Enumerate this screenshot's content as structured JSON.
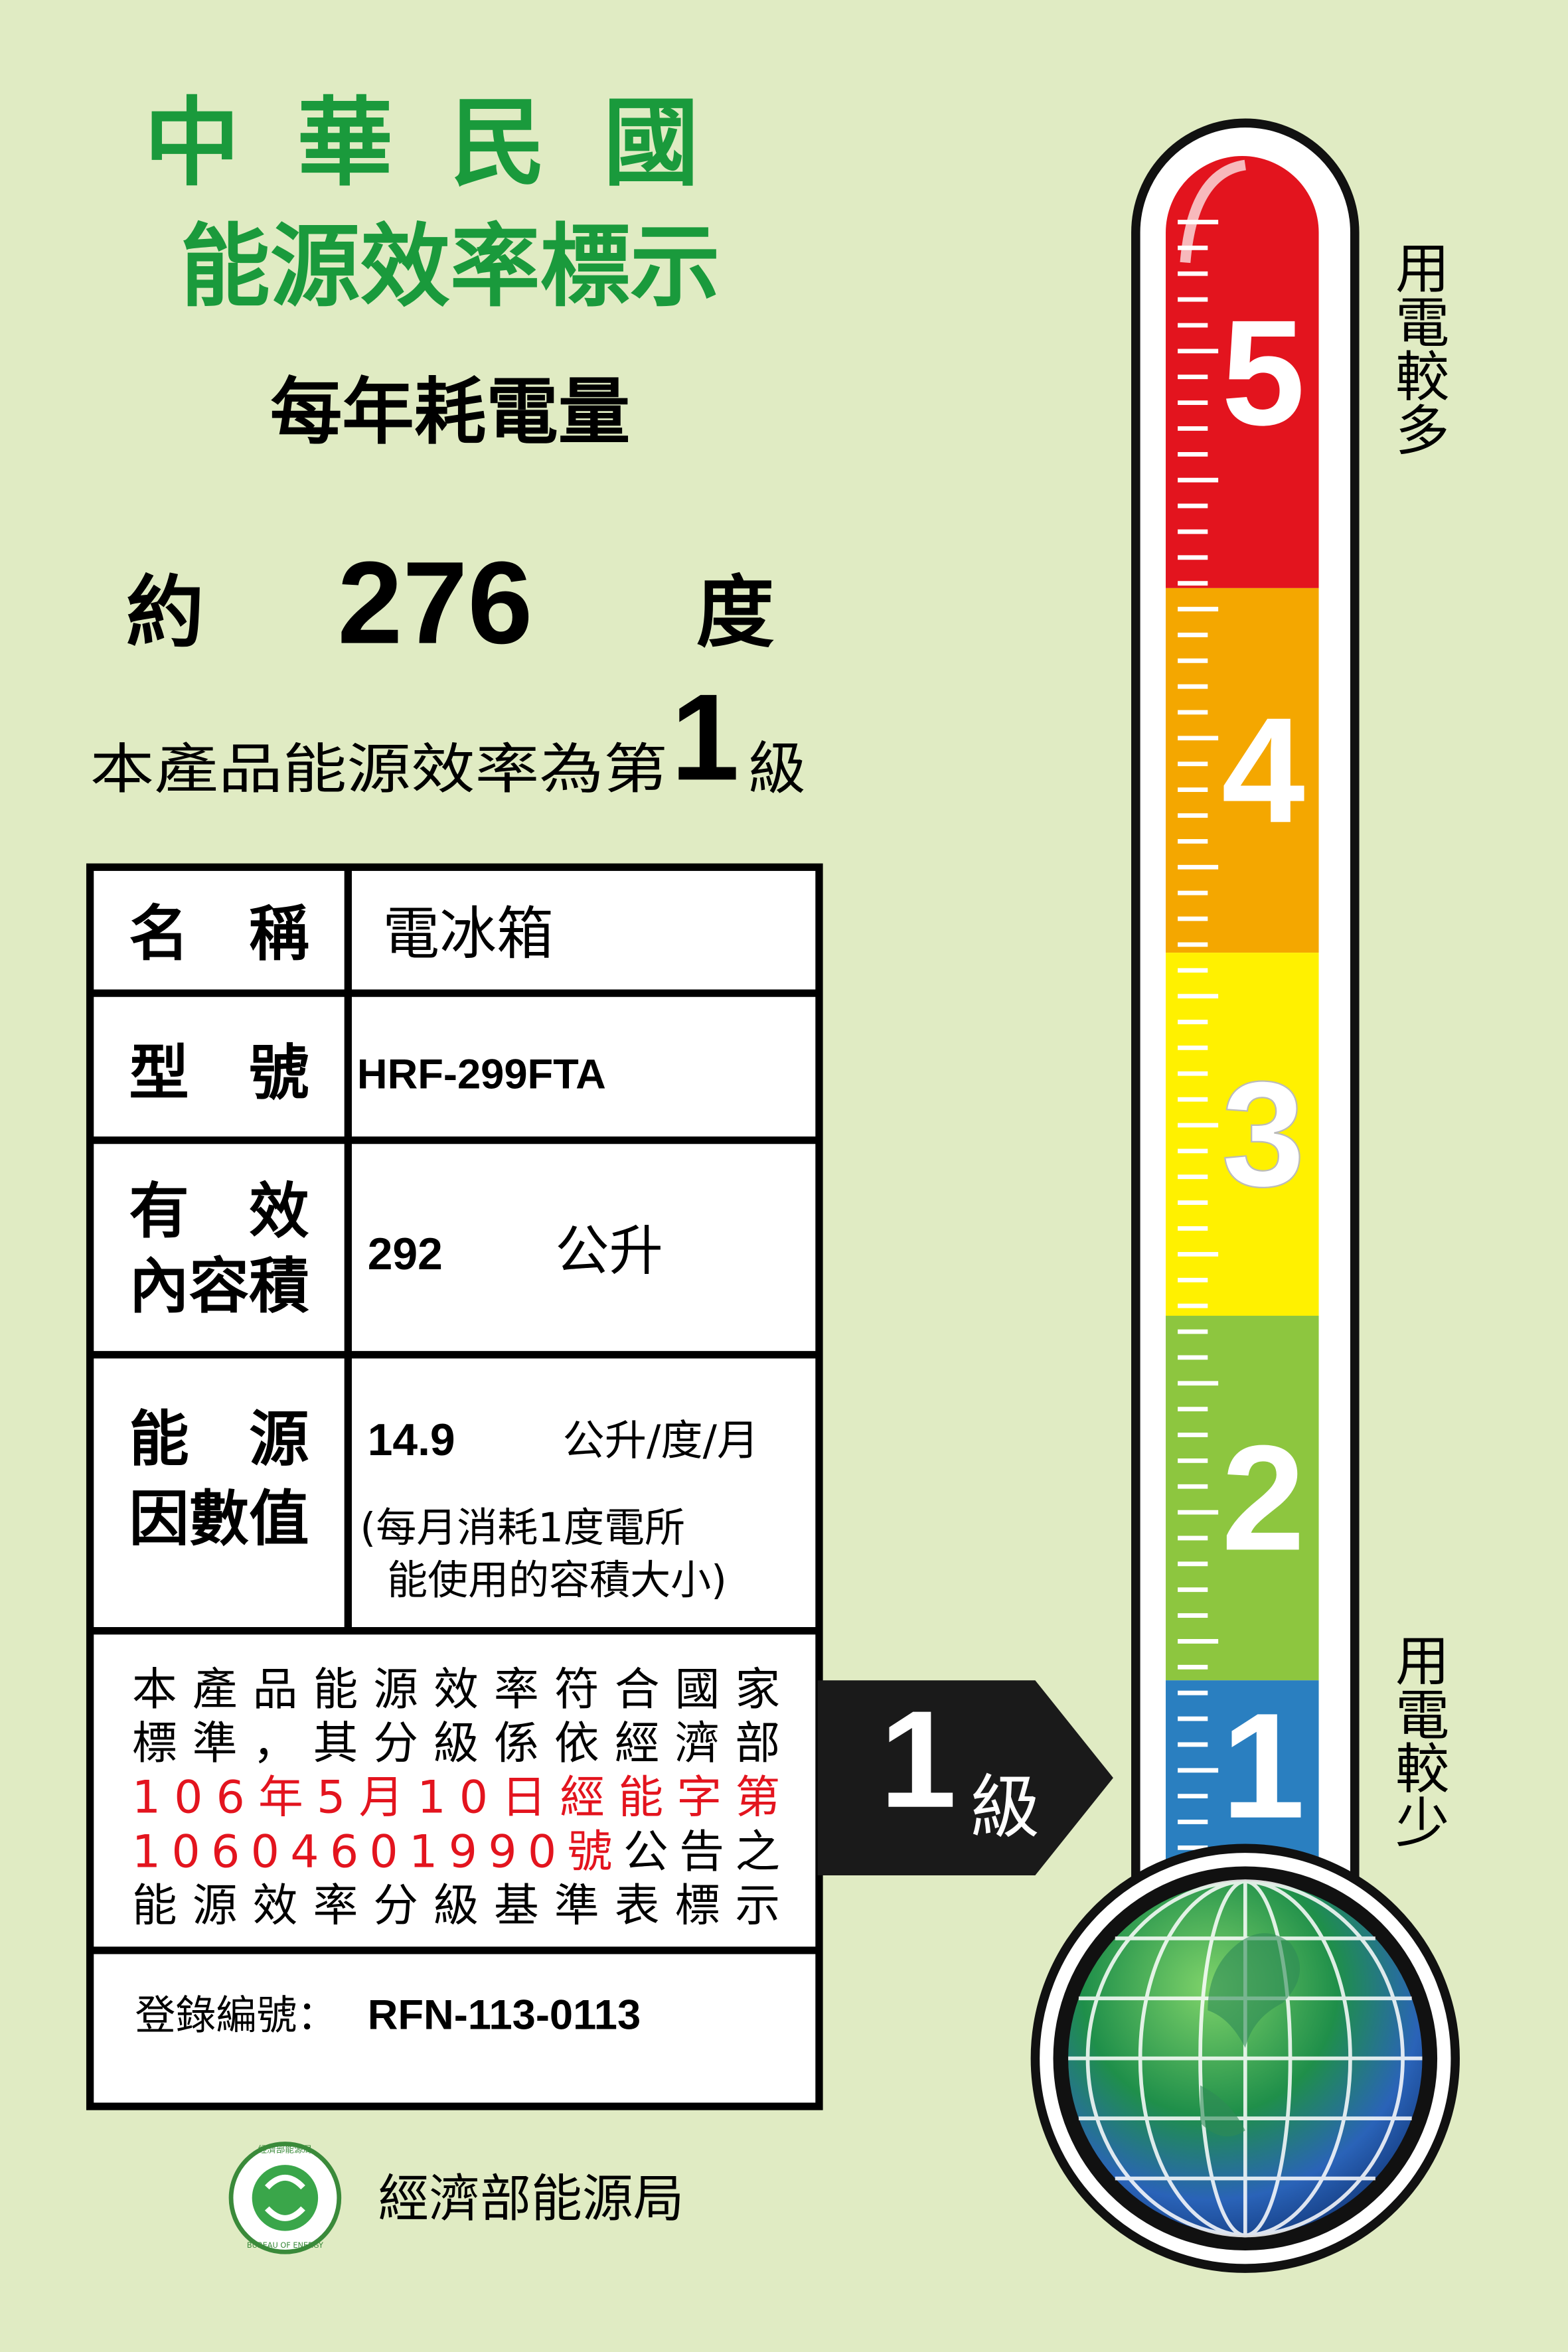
{
  "header": {
    "title_line1": "中華民國",
    "title_line2": "能源效率標示",
    "subtitle": "每年耗電量"
  },
  "consumption": {
    "prefix": "約",
    "value": "276",
    "unit": "度"
  },
  "grade_statement": {
    "prefix": "本產品能源效率為第",
    "grade": "1",
    "suffix": "級"
  },
  "table": {
    "name": {
      "label": "名　稱",
      "value": "電冰箱"
    },
    "model": {
      "label": "型　號",
      "value": "HRF-299FTA"
    },
    "volume": {
      "label_line1": "有　效",
      "label_line2": "內容積",
      "value": "292",
      "unit": "公升"
    },
    "energy_factor": {
      "label_line1": "能　源",
      "label_line2": "因數值",
      "value": "14.9",
      "unit": "公升/度/月",
      "note_line1": "(每月消耗1度電所",
      "note_line2": "能使用的容積大小)"
    },
    "notice": [
      "本產品能源效率符合國家",
      "標準，其分級係依經濟部",
      "106年5月10日經能字第",
      "10604601990號",
      "公告之",
      "能源效率分級基準表標示"
    ],
    "registration": {
      "label": "登錄編號：",
      "value": "RFN-113-0113"
    }
  },
  "arrow": {
    "grade": "1",
    "suffix": "級"
  },
  "thermometer": {
    "levels": [
      "5",
      "4",
      "3",
      "2",
      "1"
    ],
    "top_label": "用電較多",
    "bottom_label": "用電較少"
  },
  "footer": {
    "logo_text": "經濟部能源局",
    "logo_text_en": "BUREAU OF ENERGY",
    "agency": "經濟部能源局"
  }
}
